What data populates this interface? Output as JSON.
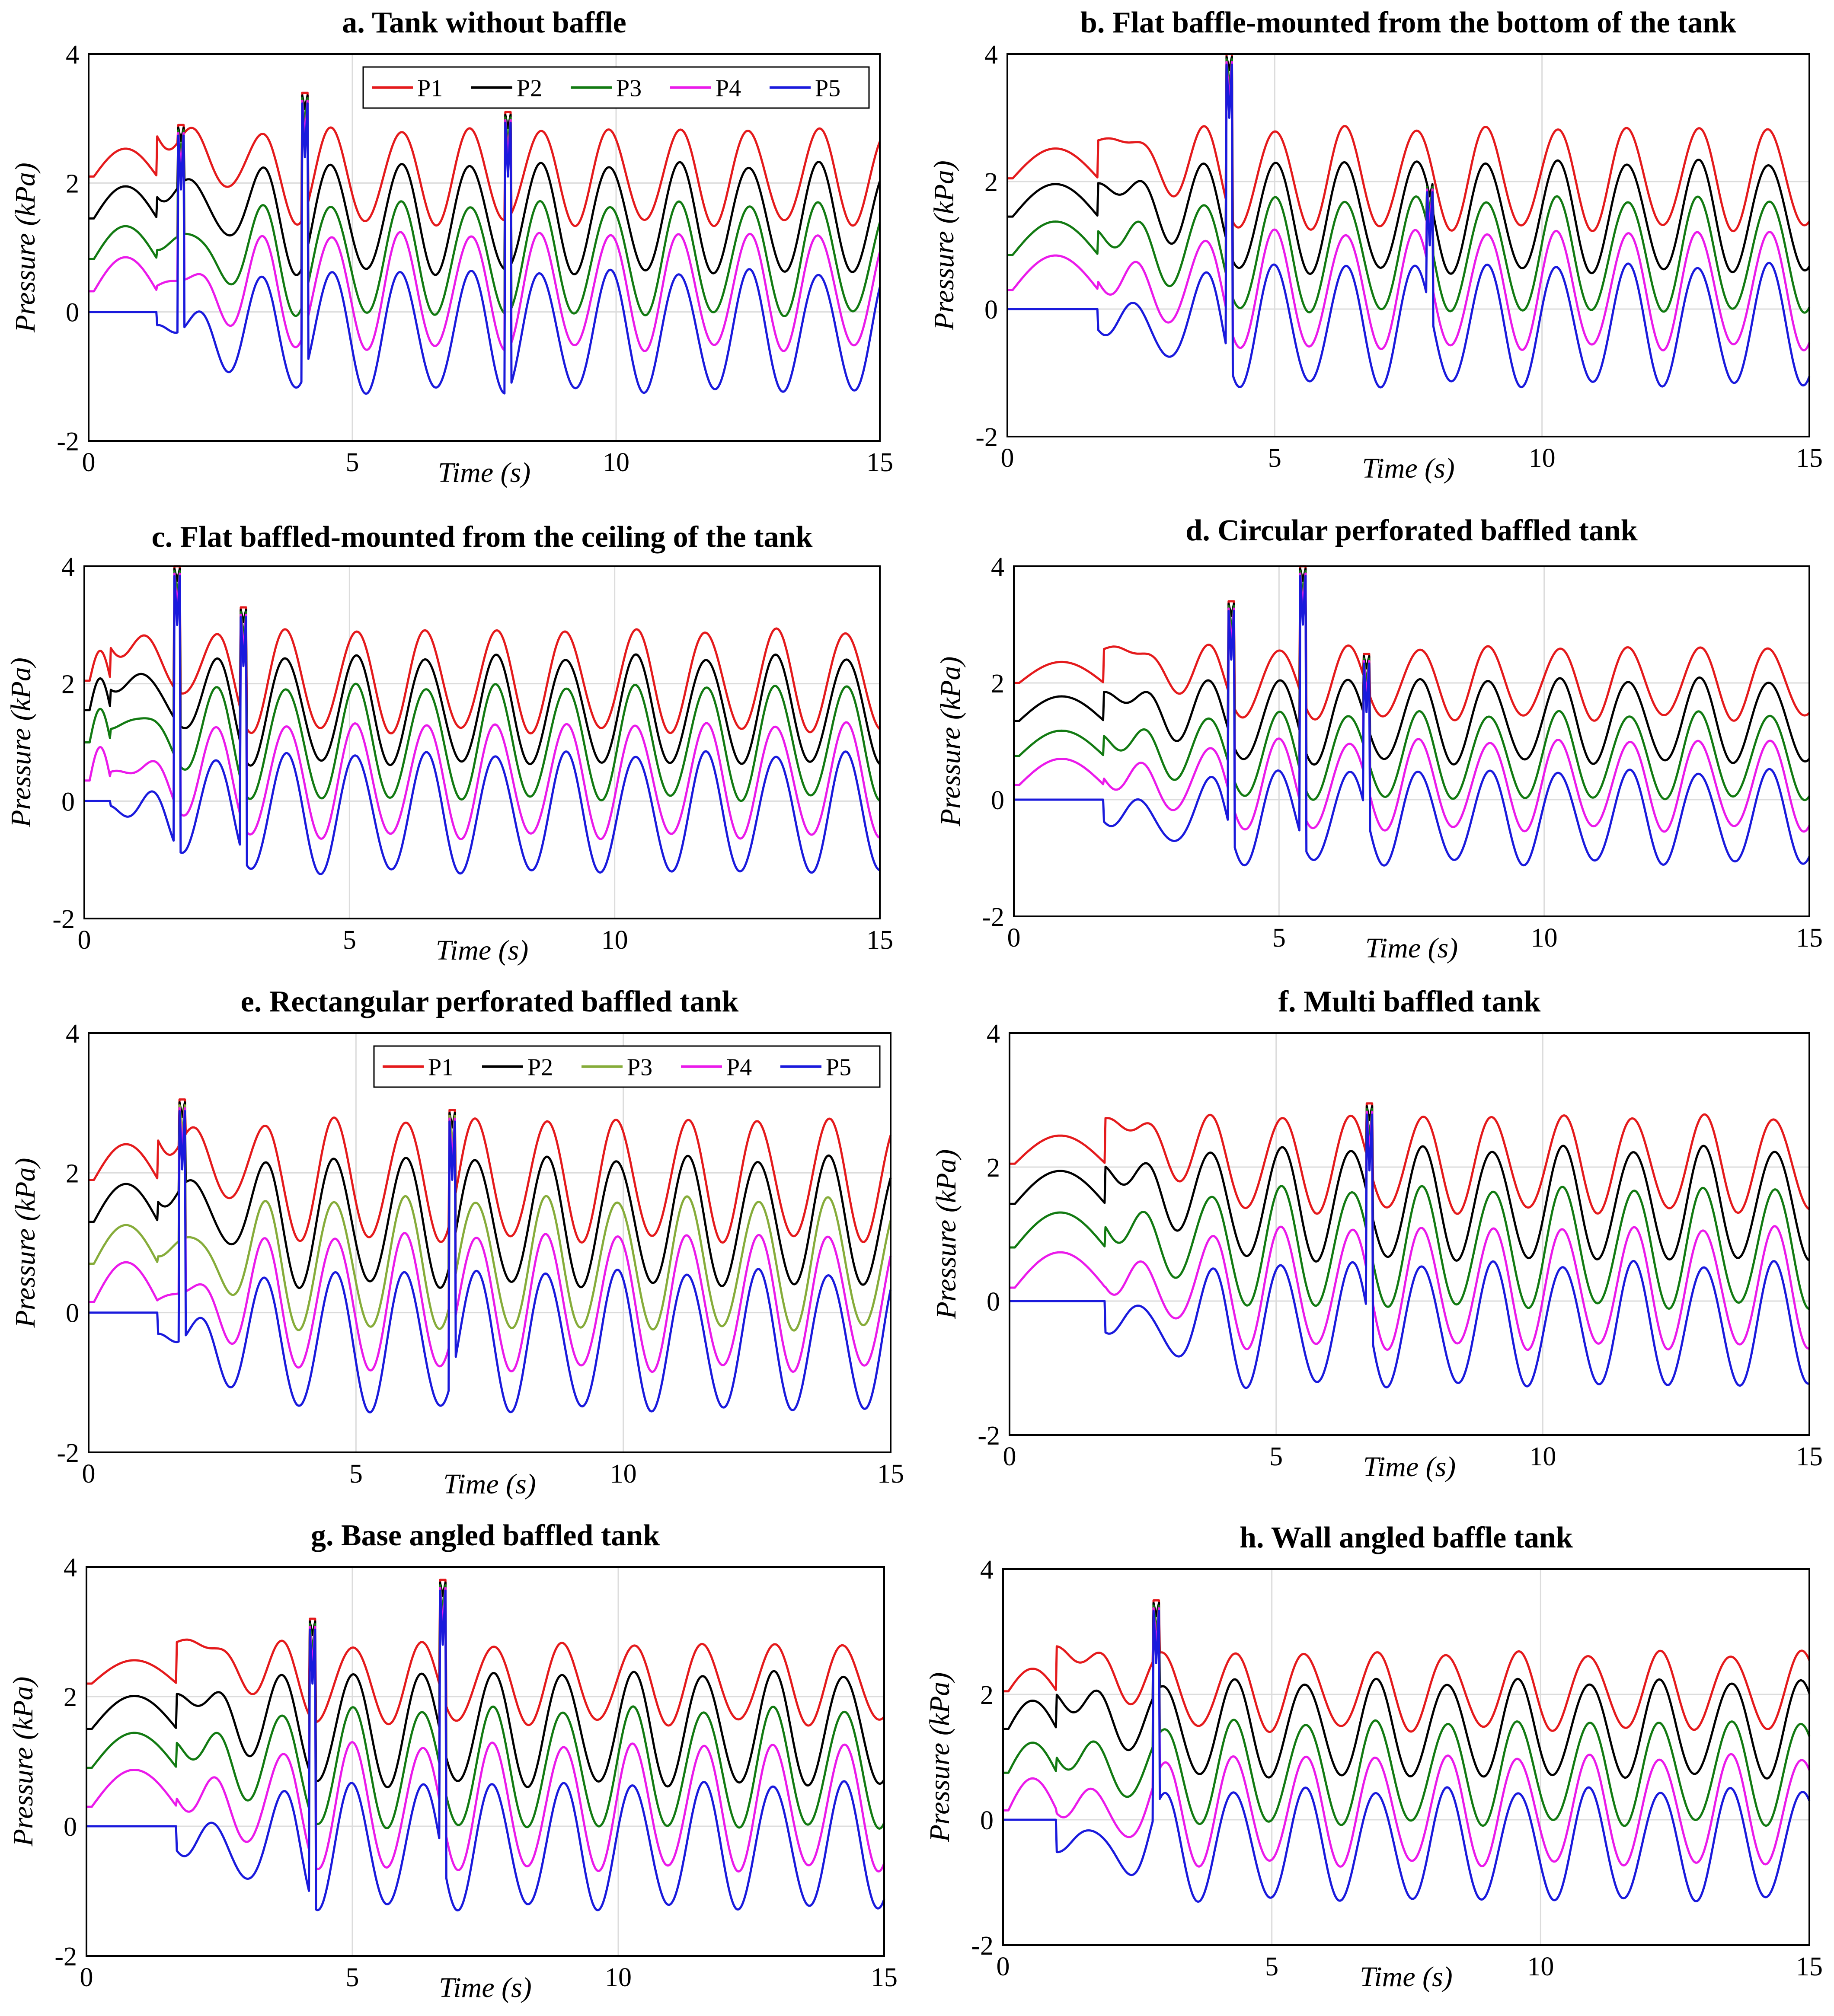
{
  "chart_data": [
    {
      "panel": "a",
      "type": "line",
      "title": "a. Tank without baffle",
      "xlabel": "Time (s)",
      "ylabel": "Pressure (kPa)",
      "xlim": [
        0,
        15
      ],
      "ylim": [
        -2,
        4
      ],
      "xticks": [
        "0",
        "5",
        "10",
        "15"
      ],
      "yticks": [
        "-2",
        "0",
        "2",
        "4"
      ],
      "grid": true,
      "legend": "top-right",
      "onset": 1.3,
      "amplitude": [
        0.72,
        0.83,
        0.85,
        0.88,
        0.92
      ],
      "offset": [
        2.1,
        1.45,
        0.82,
        0.32,
        -0.3
      ],
      "spikes": [
        [
          1.75,
          2.9
        ],
        [
          4.1,
          3.4
        ],
        [
          7.95,
          3.1
        ]
      ],
      "series": [
        {
          "name": "P1",
          "color": "#e41a1c"
        },
        {
          "name": "P2",
          "color": "#000000"
        },
        {
          "name": "P3",
          "color": "#127a12"
        },
        {
          "name": "P4",
          "color": "#ea1aea"
        },
        {
          "name": "P5",
          "color": "#1a1adc"
        }
      ]
    },
    {
      "panel": "b",
      "type": "line",
      "title": "b. Flat baffle-mounted from the bottom of the tank",
      "xlabel": "Time (s)",
      "ylabel": "Pressure (kPa)",
      "xlim": [
        0,
        15
      ],
      "ylim": [
        -2,
        4
      ],
      "xticks": [
        "0",
        "5",
        "10",
        "15"
      ],
      "yticks": [
        "-2",
        "0",
        "2",
        "4"
      ],
      "grid": true,
      "legend": "none",
      "onset": 1.7,
      "amplitude": [
        0.78,
        0.85,
        0.87,
        0.9,
        0.93
      ],
      "offset": [
        2.05,
        1.45,
        0.85,
        0.3,
        -0.25
      ],
      "spikes": [
        [
          4.15,
          4.0
        ],
        [
          7.9,
          2.0
        ]
      ],
      "series": [
        {
          "name": "P1",
          "color": "#e41a1c"
        },
        {
          "name": "P2",
          "color": "#000000"
        },
        {
          "name": "P3",
          "color": "#127a12"
        },
        {
          "name": "P4",
          "color": "#ea1aea"
        },
        {
          "name": "P5",
          "color": "#1a1adc"
        }
      ]
    },
    {
      "panel": "c",
      "type": "line",
      "title": "c. Flat baffled-mounted from the ceiling of the tank",
      "xlabel": "Time (s)",
      "ylabel": "Pressure (kPa)",
      "xlim": [
        0,
        15
      ],
      "ylim": [
        -2,
        4
      ],
      "xticks": [
        "0",
        "5",
        "10",
        "15"
      ],
      "yticks": [
        "-2",
        "0",
        "2",
        "4"
      ],
      "grid": true,
      "legend": "none",
      "onset": 0.5,
      "amplitude": [
        0.85,
        0.9,
        0.95,
        0.95,
        1.0
      ],
      "offset": [
        2.05,
        1.55,
        1.0,
        0.35,
        -0.2
      ],
      "spikes": [
        [
          1.75,
          4.0
        ],
        [
          3.0,
          3.3
        ]
      ],
      "series": [
        {
          "name": "P1",
          "color": "#e41a1c"
        },
        {
          "name": "P2",
          "color": "#000000"
        },
        {
          "name": "P3",
          "color": "#127a12"
        },
        {
          "name": "P4",
          "color": "#ea1aea"
        },
        {
          "name": "P5",
          "color": "#1a1adc"
        }
      ]
    },
    {
      "panel": "d",
      "type": "line",
      "title": "d. Circular perforated baffled tank",
      "xlabel": "Time (s)",
      "ylabel": "Pressure (kPa)",
      "xlim": [
        0,
        15
      ],
      "ylim": [
        -2,
        4
      ],
      "xticks": [
        "0",
        "5",
        "10",
        "15"
      ],
      "yticks": [
        "-2",
        "0",
        "2",
        "4"
      ],
      "grid": true,
      "legend": "none",
      "onset": 1.7,
      "amplitude": [
        0.6,
        0.7,
        0.72,
        0.75,
        0.78
      ],
      "offset": [
        2.0,
        1.35,
        0.75,
        0.25,
        -0.3
      ],
      "spikes": [
        [
          4.1,
          3.4
        ],
        [
          5.45,
          4.0
        ],
        [
          6.65,
          2.5
        ]
      ],
      "series": [
        {
          "name": "P1",
          "color": "#e41a1c"
        },
        {
          "name": "P2",
          "color": "#000000"
        },
        {
          "name": "P3",
          "color": "#127a12"
        },
        {
          "name": "P4",
          "color": "#ea1aea"
        },
        {
          "name": "P5",
          "color": "#1a1adc"
        }
      ]
    },
    {
      "panel": "e",
      "type": "line",
      "title": "e. Rectangular perforated baffled tank",
      "xlabel": "Time (s)",
      "ylabel": "Pressure (kPa)",
      "xlim": [
        0,
        15
      ],
      "ylim": [
        -2,
        4
      ],
      "xticks": [
        "0",
        "5",
        "10",
        "15"
      ],
      "yticks": [
        "-2",
        "0",
        "2",
        "4"
      ],
      "grid": true,
      "legend": "top-right",
      "onset": 1.3,
      "amplitude": [
        0.85,
        0.9,
        0.92,
        0.95,
        0.98
      ],
      "offset": [
        1.9,
        1.3,
        0.7,
        0.15,
        -0.4
      ],
      "spikes": [
        [
          1.75,
          3.05
        ],
        [
          6.8,
          2.9
        ]
      ],
      "series": [
        {
          "name": "P1",
          "color": "#e41a1c"
        },
        {
          "name": "P2",
          "color": "#000000"
        },
        {
          "name": "P3",
          "color": "#86ac3a"
        },
        {
          "name": "P4",
          "color": "#ea1aea"
        },
        {
          "name": "P5",
          "color": "#1a1adc"
        }
      ]
    },
    {
      "panel": "f",
      "type": "line",
      "title": "f. Multi baffled tank",
      "xlabel": "Time (s)",
      "ylabel": "Pressure (kPa)",
      "xlim": [
        0,
        15
      ],
      "ylim": [
        -2,
        4
      ],
      "xticks": [
        "0",
        "5",
        "10",
        "15"
      ],
      "yticks": [
        "-2",
        "0",
        "2",
        "4"
      ],
      "grid": true,
      "legend": "none",
      "onset": 1.8,
      "amplitude": [
        0.7,
        0.82,
        0.87,
        0.88,
        0.9
      ],
      "offset": [
        2.05,
        1.45,
        0.8,
        0.2,
        -0.35
      ],
      "spikes": [
        [
          6.75,
          2.95
        ]
      ],
      "series": [
        {
          "name": "P1",
          "color": "#e41a1c"
        },
        {
          "name": "P2",
          "color": "#000000"
        },
        {
          "name": "P3",
          "color": "#127a12"
        },
        {
          "name": "P4",
          "color": "#ea1aea"
        },
        {
          "name": "P5",
          "color": "#1a1adc"
        }
      ]
    },
    {
      "panel": "g",
      "type": "line",
      "title": "g. Base angled baffled tank",
      "xlabel": "Time (s)",
      "ylabel": "Pressure (kPa)",
      "xlim": [
        0,
        15
      ],
      "ylim": [
        -2,
        4
      ],
      "xticks": [
        "0",
        "5",
        "10",
        "15"
      ],
      "yticks": [
        "-2",
        "0",
        "2",
        "4"
      ],
      "grid": true,
      "legend": "none",
      "onset": 1.7,
      "amplitude": [
        0.6,
        0.85,
        0.9,
        0.95,
        0.95
      ],
      "offset": [
        2.2,
        1.5,
        0.9,
        0.3,
        -0.3
      ],
      "spikes": [
        [
          4.25,
          3.2
        ],
        [
          6.7,
          3.8
        ]
      ],
      "series": [
        {
          "name": "P1",
          "color": "#e41a1c"
        },
        {
          "name": "P2",
          "color": "#000000"
        },
        {
          "name": "P3",
          "color": "#127a12"
        },
        {
          "name": "P4",
          "color": "#ea1aea"
        },
        {
          "name": "P5",
          "color": "#1a1adc"
        }
      ]
    },
    {
      "panel": "h",
      "type": "line",
      "title": "h. Wall angled baffle tank",
      "xlabel": "Time (s)",
      "ylabel": "Pressure (kPa)",
      "xlim": [
        0,
        15
      ],
      "ylim": [
        -2,
        4
      ],
      "xticks": [
        "0",
        "5",
        "10",
        "15"
      ],
      "yticks": [
        "-2",
        "0",
        "2",
        "4"
      ],
      "grid": true,
      "legend": "none",
      "onset": 1.0,
      "amplitude": [
        0.6,
        0.75,
        0.8,
        0.85,
        0.87
      ],
      "offset": [
        2.05,
        1.45,
        0.75,
        0.15,
        -0.4
      ],
      "spikes": [
        [
          2.85,
          3.5
        ]
      ],
      "series": [
        {
          "name": "P1",
          "color": "#e41a1c"
        },
        {
          "name": "P2",
          "color": "#000000"
        },
        {
          "name": "P3",
          "color": "#127a12"
        },
        {
          "name": "P4",
          "color": "#ea1aea"
        },
        {
          "name": "P5",
          "color": "#1a1adc"
        }
      ]
    }
  ]
}
